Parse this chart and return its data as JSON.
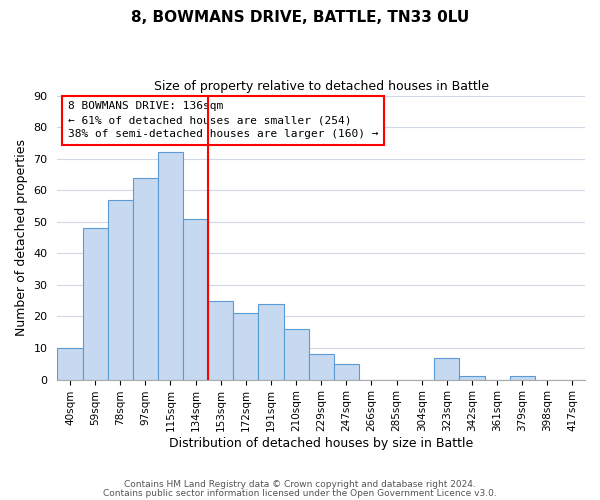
{
  "title": "8, BOWMANS DRIVE, BATTLE, TN33 0LU",
  "subtitle": "Size of property relative to detached houses in Battle",
  "xlabel": "Distribution of detached houses by size in Battle",
  "ylabel": "Number of detached properties",
  "bar_labels": [
    "40sqm",
    "59sqm",
    "78sqm",
    "97sqm",
    "115sqm",
    "134sqm",
    "153sqm",
    "172sqm",
    "191sqm",
    "210sqm",
    "229sqm",
    "247sqm",
    "266sqm",
    "285sqm",
    "304sqm",
    "323sqm",
    "342sqm",
    "361sqm",
    "379sqm",
    "398sqm",
    "417sqm"
  ],
  "bar_values": [
    10,
    48,
    57,
    64,
    72,
    51,
    25,
    21,
    24,
    16,
    8,
    5,
    0,
    0,
    0,
    7,
    1,
    0,
    1,
    0,
    0
  ],
  "bar_color": "#c6d9f0",
  "bar_edge_color": "#5b9bd5",
  "ylim": [
    0,
    90
  ],
  "yticks": [
    0,
    10,
    20,
    30,
    40,
    50,
    60,
    70,
    80,
    90
  ],
  "annotation_title": "8 BOWMANS DRIVE: 136sqm",
  "annotation_line1": "← 61% of detached houses are smaller (254)",
  "annotation_line2": "38% of semi-detached houses are larger (160) →",
  "footer_line1": "Contains HM Land Registry data © Crown copyright and database right 2024.",
  "footer_line2": "Contains public sector information licensed under the Open Government Licence v3.0.",
  "background_color": "#ffffff",
  "grid_color": "#d0d8e8",
  "ref_line_index": 5.5
}
